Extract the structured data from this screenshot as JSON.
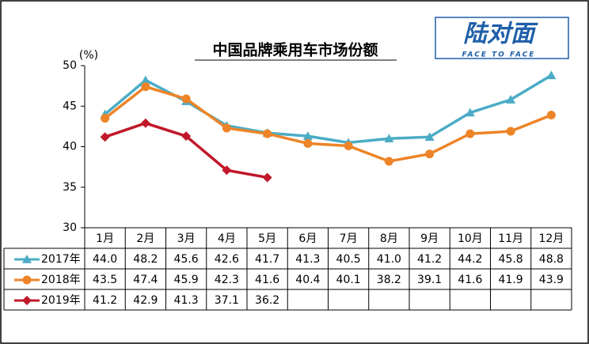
{
  "chart_data": {
    "type": "line",
    "title": "中国品牌乘用车市场份额",
    "unit_label": "(%)",
    "categories": [
      "1月",
      "2月",
      "3月",
      "4月",
      "5月",
      "6月",
      "7月",
      "8月",
      "9月",
      "10月",
      "11月",
      "12月"
    ],
    "series": [
      {
        "name": "2017年",
        "color": "#4bacc6",
        "marker": "triangle",
        "values": [
          44.0,
          48.2,
          45.6,
          42.6,
          41.7,
          41.3,
          40.5,
          41.0,
          41.2,
          44.2,
          45.8,
          48.8
        ],
        "value_labels": [
          "44.0",
          "48.2",
          "45.6",
          "42.6",
          "41.7",
          "41.3",
          "40.5",
          "41.0",
          "41.2",
          "44.2",
          "45.8",
          "48.8"
        ]
      },
      {
        "name": "2018年",
        "color": "#ed8428",
        "marker": "circle",
        "values": [
          43.5,
          47.4,
          45.9,
          42.3,
          41.6,
          40.4,
          40.1,
          38.2,
          39.1,
          41.6,
          41.9,
          43.9
        ],
        "value_labels": [
          "43.5",
          "47.4",
          "45.9",
          "42.3",
          "41.6",
          "40.4",
          "40.1",
          "38.2",
          "39.1",
          "41.6",
          "41.9",
          "43.9"
        ]
      },
      {
        "name": "2019年",
        "color": "#c0182a",
        "marker": "diamond",
        "values": [
          41.2,
          42.9,
          41.3,
          37.1,
          36.2,
          null,
          null,
          null,
          null,
          null,
          null,
          null
        ],
        "value_labels": [
          "41.2",
          "42.9",
          "41.3",
          "37.1",
          "36.2",
          null,
          null,
          null,
          null,
          null,
          null,
          null
        ]
      }
    ],
    "ylim": [
      30,
      50
    ],
    "yticks": [
      30,
      35,
      40,
      45,
      50
    ],
    "grid": false
  },
  "logo": {
    "title": "陆对面",
    "subtitle": "FACE TO FACE"
  }
}
